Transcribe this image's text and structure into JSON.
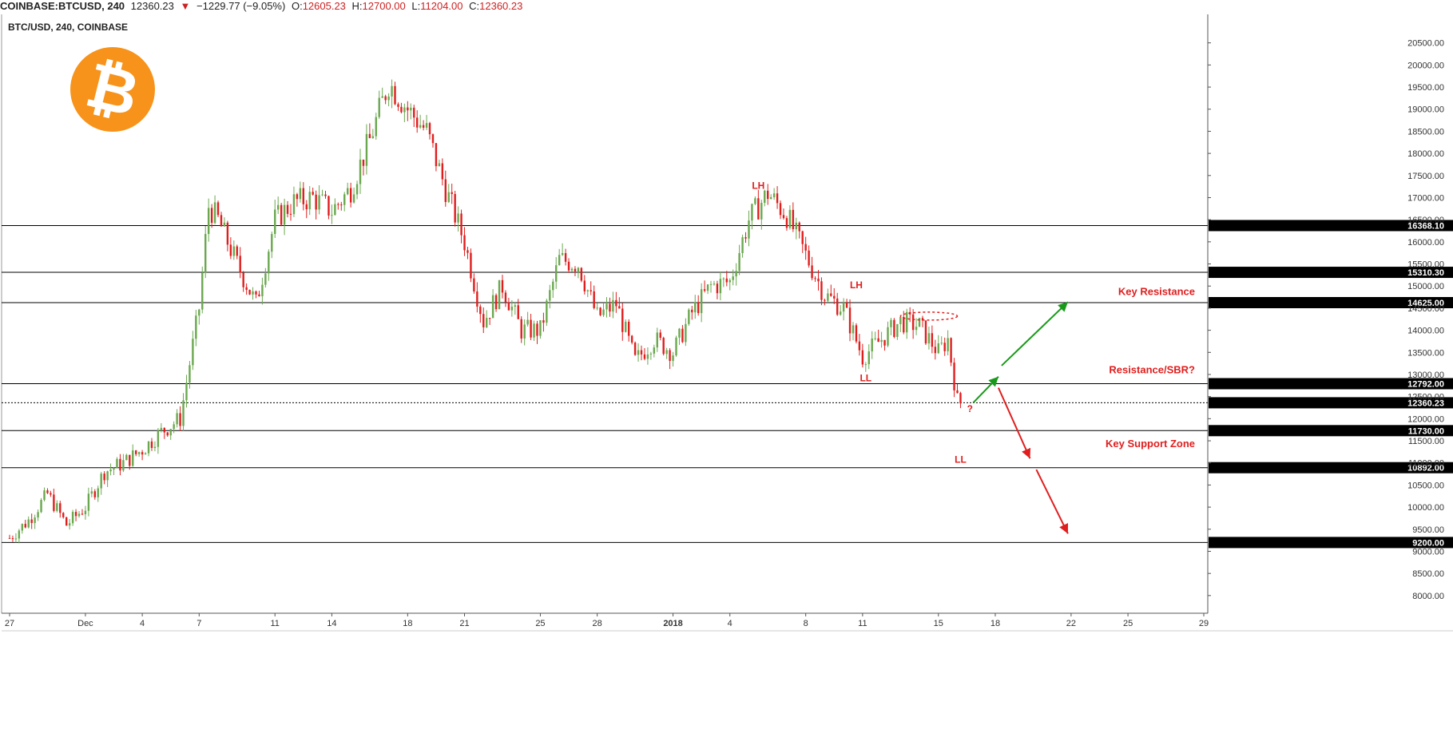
{
  "topbar": {
    "symbol": "COINBASE:BTCUSD, 240",
    "last": "12360.23",
    "change_arrow": "▼",
    "change": "−1229.77 (−9.05%)",
    "o_label": "O:",
    "o_value": "12605.23",
    "h_label": "H:",
    "h_value": "12700.00",
    "l_label": "L:",
    "l_value": "11204.00",
    "c_label": "C:",
    "c_value": "12360.23"
  },
  "chart_title": "BTC/USD, 240, COINBASE",
  "logo": {
    "symbol": "₿",
    "color": "#f7931a"
  },
  "colors": {
    "up": "#6aa84f",
    "down": "#e01e1e",
    "level": "#000000",
    "annotation": "#e01e1e",
    "arrow_up": "#1a9a1a",
    "arrow_down": "#e01e1e"
  },
  "chart_data": {
    "type": "candlestick",
    "timeframe": "240",
    "ylim": [
      7600,
      21000
    ],
    "y_ticks": [
      "8000.00",
      "8500.00",
      "9000.00",
      "9500.00",
      "10000.00",
      "10500.00",
      "11000.00",
      "11500.00",
      "12000.00",
      "12500.00",
      "13000.00",
      "13500.00",
      "14000.00",
      "14500.00",
      "15000.00",
      "15500.00",
      "16000.00",
      "16500.00",
      "17000.00",
      "17500.00",
      "18000.00",
      "18500.00",
      "19000.00",
      "19500.00",
      "20000.00",
      "20500.00"
    ],
    "x_range": [
      "2017-11-27",
      "2018-01-29"
    ],
    "x_ticks": [
      {
        "date": "2017-11-27",
        "label": "27"
      },
      {
        "date": "2017-12-01",
        "label": "Dec"
      },
      {
        "date": "2017-12-04",
        "label": "4"
      },
      {
        "date": "2017-12-07",
        "label": "7"
      },
      {
        "date": "2017-12-11",
        "label": "11"
      },
      {
        "date": "2017-12-14",
        "label": "14"
      },
      {
        "date": "2017-12-18",
        "label": "18"
      },
      {
        "date": "2017-12-21",
        "label": "21"
      },
      {
        "date": "2017-12-25",
        "label": "25"
      },
      {
        "date": "2017-12-28",
        "label": "28"
      },
      {
        "date": "2018-01-01",
        "label": "2018"
      },
      {
        "date": "2018-01-04",
        "label": "4"
      },
      {
        "date": "2018-01-08",
        "label": "8"
      },
      {
        "date": "2018-01-11",
        "label": "11"
      },
      {
        "date": "2018-01-15",
        "label": "15"
      },
      {
        "date": "2018-01-18",
        "label": "18"
      },
      {
        "date": "2018-01-22",
        "label": "22"
      },
      {
        "date": "2018-01-25",
        "label": "25"
      },
      {
        "date": "2018-01-29",
        "label": "29"
      }
    ],
    "close_path": [
      [
        "2017-11-27",
        9300
      ],
      [
        "2017-11-28",
        9700
      ],
      [
        "2017-11-29",
        10300
      ],
      [
        "2017-11-30",
        9600
      ],
      [
        "2017-12-01",
        10000
      ],
      [
        "2017-12-02",
        10800
      ],
      [
        "2017-12-03",
        11000
      ],
      [
        "2017-12-04",
        11300
      ],
      [
        "2017-12-05",
        11700
      ],
      [
        "2017-12-06",
        12000
      ],
      [
        "2017-12-07",
        14500
      ],
      [
        "2017-12-07T12",
        16800
      ],
      [
        "2017-12-08",
        16500
      ],
      [
        "2017-12-09",
        15500
      ],
      [
        "2017-12-10",
        14600
      ],
      [
        "2017-12-11",
        16500
      ],
      [
        "2017-12-12",
        16900
      ],
      [
        "2017-12-13",
        17000
      ],
      [
        "2017-12-14",
        16700
      ],
      [
        "2017-12-15",
        17200
      ],
      [
        "2017-12-16",
        18300
      ],
      [
        "2017-12-17",
        19600
      ],
      [
        "2017-12-18",
        19000
      ],
      [
        "2017-12-19",
        18500
      ],
      [
        "2017-12-20",
        17200
      ],
      [
        "2017-12-21",
        16000
      ],
      [
        "2017-12-22",
        14200
      ],
      [
        "2017-12-23",
        15000
      ],
      [
        "2017-12-24",
        14000
      ],
      [
        "2017-12-25",
        14000
      ],
      [
        "2017-12-26",
        15600
      ],
      [
        "2017-12-27",
        15500
      ],
      [
        "2017-12-28",
        14300
      ],
      [
        "2017-12-29",
        14600
      ],
      [
        "2017-12-30",
        13300
      ],
      [
        "2017-12-31",
        13800
      ],
      [
        "2018-01-01",
        13500
      ],
      [
        "2018-01-02",
        14400
      ],
      [
        "2018-01-03",
        15000
      ],
      [
        "2018-01-04",
        15100
      ],
      [
        "2018-01-05",
        16500
      ],
      [
        "2018-01-06",
        17100
      ],
      [
        "2018-01-07",
        16600
      ],
      [
        "2018-01-08",
        15700
      ],
      [
        "2018-01-09",
        14800
      ],
      [
        "2018-01-10",
        14500
      ],
      [
        "2018-01-11",
        13400
      ],
      [
        "2018-01-12",
        13800
      ],
      [
        "2018-01-13",
        14200
      ],
      [
        "2018-01-14",
        14100
      ],
      [
        "2018-01-15",
        13500
      ],
      [
        "2018-01-15T12",
        13800
      ],
      [
        "2018-01-16",
        12400
      ],
      [
        "2018-01-16T04",
        12360.23
      ]
    ],
    "horizontal_levels": [
      {
        "price": 16368.1,
        "label": "16368.10",
        "style": "solid"
      },
      {
        "price": 15310.3,
        "label": "15310.30",
        "style": "solid"
      },
      {
        "price": 14625.0,
        "label": "14625.00",
        "style": "solid"
      },
      {
        "price": 12792.0,
        "label": "12792.00",
        "style": "solid"
      },
      {
        "price": 12360.23,
        "label": "12360.23",
        "style": "dotted"
      },
      {
        "price": 11730.0,
        "label": "11730.00",
        "style": "solid"
      },
      {
        "price": 10892.0,
        "label": "10892.00",
        "style": "solid"
      },
      {
        "price": 9200.0,
        "label": "9200.00",
        "style": "solid"
      }
    ],
    "annotations": [
      {
        "text": "LH",
        "date": "2018-01-05T12",
        "price": 17200
      },
      {
        "text": "LH",
        "date": "2018-01-10T16",
        "price": 14950
      },
      {
        "text": "LL",
        "date": "2018-01-11T04",
        "price": 12850
      },
      {
        "text": "LL",
        "date": "2018-01-16T04",
        "price": 11000
      },
      {
        "text": "?",
        "date": "2018-01-16T16",
        "price": 12150
      }
    ],
    "zone_labels": [
      {
        "text": "Key Resistance",
        "price": 14800
      },
      {
        "text": "Resistance/SBR?",
        "price": 13030
      },
      {
        "text": "Key Support Zone",
        "price": 11360
      }
    ],
    "projection_arrows": [
      {
        "color": "up",
        "from": [
          "2018-01-16T20",
          12360
        ],
        "to": [
          "2018-01-18T04",
          12950
        ]
      },
      {
        "color": "up",
        "from": [
          "2018-01-18T08",
          13200
        ],
        "to": [
          "2018-01-21T20",
          14640
        ]
      },
      {
        "color": "down",
        "from": [
          "2018-01-18T04",
          12700
        ],
        "to": [
          "2018-01-19T20",
          11100
        ]
      },
      {
        "color": "down",
        "from": [
          "2018-01-20T04",
          10850
        ],
        "to": [
          "2018-01-21T20",
          9400
        ]
      }
    ],
    "ellipse_marker": {
      "date_from": "2018-01-13",
      "date_to": "2018-01-16",
      "price": 14320
    }
  }
}
